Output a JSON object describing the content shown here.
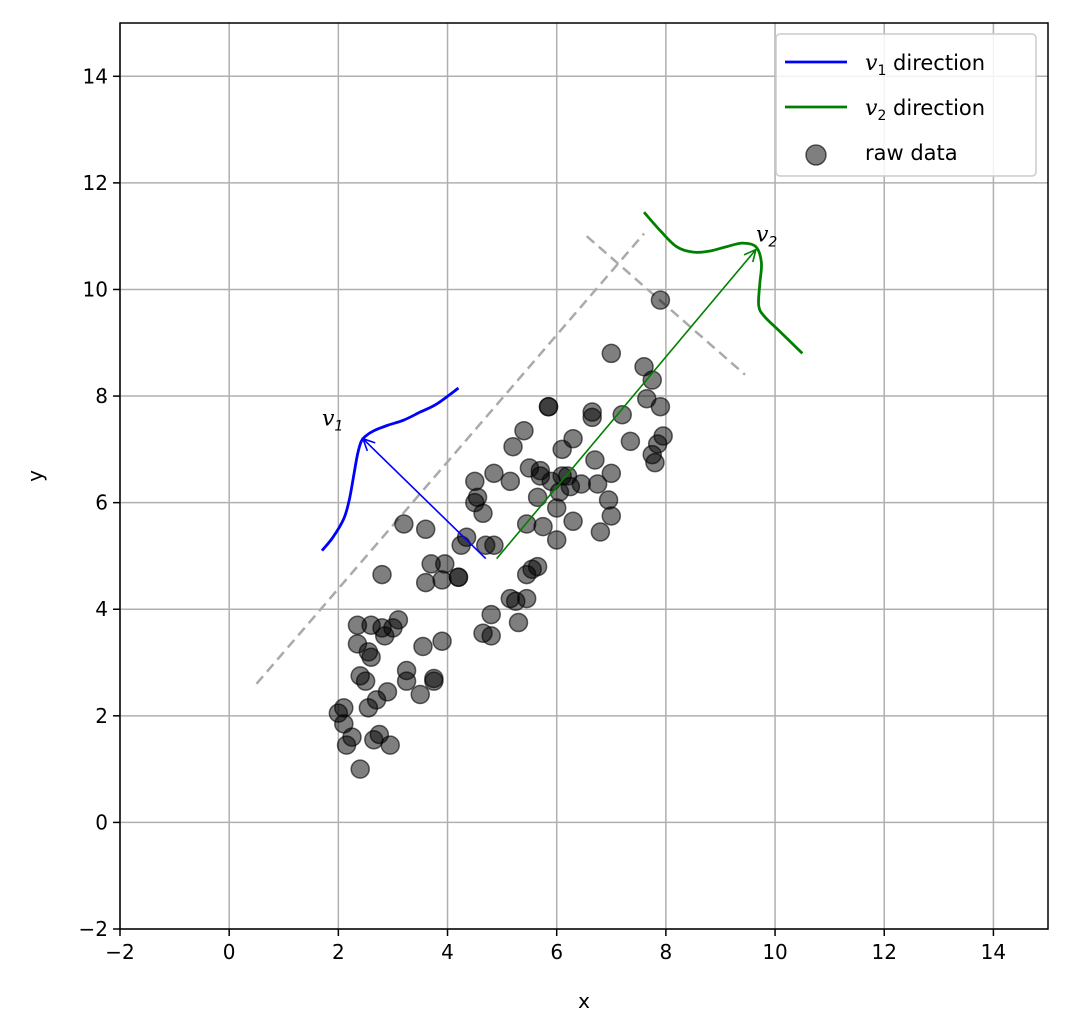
{
  "chart_data": {
    "type": "scatter",
    "title": "",
    "xlabel": "x",
    "ylabel": "y",
    "xlim": [
      -2,
      15
    ],
    "ylim": [
      -2,
      15
    ],
    "xticks": [
      -2,
      0,
      2,
      4,
      6,
      8,
      10,
      12,
      14
    ],
    "yticks": [
      -2,
      0,
      2,
      4,
      6,
      8,
      10,
      12,
      14
    ],
    "grid": true,
    "legend": {
      "placement": "top-right",
      "entries": [
        {
          "label_var": "v",
          "label_sub": "1",
          "label_text": " direction",
          "color": "#0000ff",
          "kind": "line"
        },
        {
          "label_var": "v",
          "label_sub": "2",
          "label_text": " direction",
          "color": "#008000",
          "kind": "line"
        },
        {
          "label_text": "raw data",
          "color": "#000000",
          "kind": "marker"
        }
      ]
    },
    "scatter": {
      "name": "raw data",
      "color": "#000000",
      "alpha": 0.5,
      "points": [
        [
          2.0,
          2.05
        ],
        [
          2.1,
          2.15
        ],
        [
          2.1,
          1.85
        ],
        [
          2.15,
          1.45
        ],
        [
          2.25,
          1.6
        ],
        [
          2.4,
          1.0
        ],
        [
          2.55,
          2.15
        ],
        [
          2.7,
          2.3
        ],
        [
          2.65,
          1.55
        ],
        [
          2.75,
          1.65
        ],
        [
          2.95,
          1.45
        ],
        [
          2.9,
          2.45
        ],
        [
          2.5,
          2.65
        ],
        [
          2.4,
          2.75
        ],
        [
          2.55,
          3.2
        ],
        [
          2.6,
          3.1
        ],
        [
          2.35,
          3.35
        ],
        [
          2.35,
          3.7
        ],
        [
          2.6,
          3.7
        ],
        [
          2.8,
          3.65
        ],
        [
          2.85,
          3.5
        ],
        [
          3.0,
          3.65
        ],
        [
          3.1,
          3.8
        ],
        [
          3.25,
          2.85
        ],
        [
          3.25,
          2.65
        ],
        [
          3.5,
          2.4
        ],
        [
          3.75,
          2.7
        ],
        [
          3.75,
          2.65
        ],
        [
          3.55,
          3.3
        ],
        [
          3.9,
          3.4
        ],
        [
          2.8,
          4.65
        ],
        [
          3.6,
          4.5
        ],
        [
          3.7,
          4.85
        ],
        [
          3.9,
          4.55
        ],
        [
          3.95,
          4.85
        ],
        [
          4.2,
          4.6
        ],
        [
          4.2,
          4.6
        ],
        [
          4.25,
          5.2
        ],
        [
          4.35,
          5.35
        ],
        [
          3.2,
          5.6
        ],
        [
          3.6,
          5.5
        ],
        [
          4.5,
          6.0
        ],
        [
          4.55,
          6.1
        ],
        [
          4.5,
          6.4
        ],
        [
          4.65,
          5.8
        ],
        [
          4.7,
          5.2
        ],
        [
          4.85,
          5.2
        ],
        [
          4.85,
          6.55
        ],
        [
          4.65,
          3.55
        ],
        [
          4.8,
          3.5
        ],
        [
          4.8,
          3.9
        ],
        [
          5.15,
          4.2
        ],
        [
          5.25,
          4.15
        ],
        [
          5.3,
          3.75
        ],
        [
          5.45,
          4.2
        ],
        [
          5.45,
          4.65
        ],
        [
          5.55,
          4.75
        ],
        [
          5.65,
          4.8
        ],
        [
          5.15,
          6.4
        ],
        [
          5.2,
          7.05
        ],
        [
          5.4,
          7.35
        ],
        [
          5.45,
          5.6
        ],
        [
          5.5,
          6.65
        ],
        [
          5.7,
          6.6
        ],
        [
          5.7,
          6.5
        ],
        [
          5.75,
          5.55
        ],
        [
          5.65,
          6.1
        ],
        [
          5.85,
          7.8
        ],
        [
          5.85,
          7.8
        ],
        [
          5.9,
          6.4
        ],
        [
          6.0,
          5.9
        ],
        [
          6.0,
          5.3
        ],
        [
          6.05,
          6.2
        ],
        [
          6.1,
          7.0
        ],
        [
          6.1,
          6.5
        ],
        [
          6.2,
          6.5
        ],
        [
          6.25,
          6.3
        ],
        [
          6.3,
          5.65
        ],
        [
          6.3,
          7.2
        ],
        [
          6.45,
          6.35
        ],
        [
          6.65,
          7.6
        ],
        [
          6.65,
          7.7
        ],
        [
          6.7,
          6.8
        ],
        [
          6.75,
          6.35
        ],
        [
          6.8,
          5.45
        ],
        [
          6.95,
          6.05
        ],
        [
          7.0,
          6.55
        ],
        [
          7.0,
          5.75
        ],
        [
          7.0,
          8.8
        ],
        [
          7.2,
          7.65
        ],
        [
          7.35,
          7.15
        ],
        [
          7.6,
          8.55
        ],
        [
          7.65,
          7.95
        ],
        [
          7.75,
          8.3
        ],
        [
          7.75,
          6.9
        ],
        [
          7.8,
          6.75
        ],
        [
          7.85,
          7.1
        ],
        [
          7.9,
          7.8
        ],
        [
          7.95,
          7.25
        ],
        [
          7.9,
          9.8
        ]
      ]
    },
    "reference_lines": [
      {
        "color": "#aaaaaa",
        "style": "dashed",
        "x": [
          0.5,
          7.6
        ],
        "y": [
          2.6,
          11.05
        ]
      },
      {
        "color": "#aaaaaa",
        "style": "dashed",
        "x": [
          6.55,
          9.45
        ],
        "y": [
          11.0,
          8.4
        ]
      }
    ],
    "vectors": [
      {
        "name": "v1",
        "color": "#0000ff",
        "from": [
          4.7,
          4.95
        ],
        "to": [
          2.45,
          7.2
        ]
      },
      {
        "name": "v2",
        "color": "#008000",
        "from": [
          4.9,
          4.95
        ],
        "to": [
          9.65,
          10.75
        ]
      }
    ],
    "density_curves": [
      {
        "name": "v1 direction",
        "color": "#0000ff",
        "x": [
          1.7,
          1.9,
          2.1,
          2.2,
          2.28,
          2.35,
          2.42,
          2.5,
          2.65,
          2.9,
          3.2,
          3.5,
          3.8,
          4.2
        ],
        "y": [
          5.1,
          5.35,
          5.7,
          6.05,
          6.5,
          6.9,
          7.15,
          7.25,
          7.35,
          7.45,
          7.55,
          7.7,
          7.85,
          8.15
        ]
      },
      {
        "name": "v2 direction",
        "color": "#008000",
        "x": [
          7.6,
          7.9,
          8.2,
          8.5,
          8.8,
          9.1,
          9.4,
          9.65,
          9.75,
          9.72,
          9.7,
          9.8,
          10.1,
          10.5
        ],
        "y": [
          11.45,
          11.1,
          10.8,
          10.7,
          10.72,
          10.8,
          10.87,
          10.8,
          10.5,
          10.1,
          9.7,
          9.5,
          9.2,
          8.8
        ]
      }
    ],
    "annotations": [
      {
        "var": "v",
        "sub": "1",
        "x": 1.7,
        "y": 7.45
      },
      {
        "var": "v",
        "sub": "2",
        "x": 9.65,
        "y": 10.9
      }
    ]
  }
}
